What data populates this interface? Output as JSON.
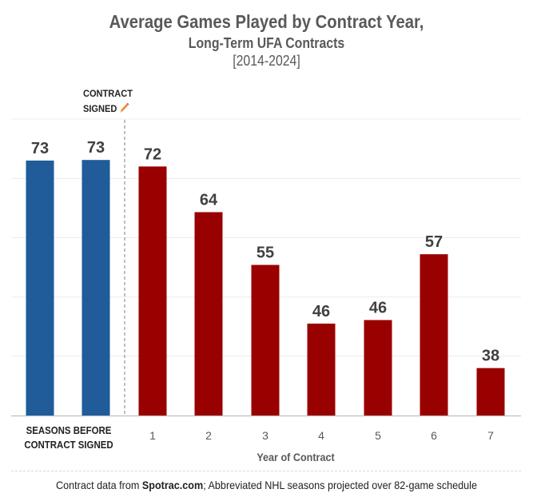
{
  "title": "Average Games Played by Contract Year,",
  "subtitle": "Long-Term UFA Contracts",
  "date_range": "[2014-2024]",
  "annotation": {
    "line1": "CONTRACT",
    "line2": "SIGNED",
    "icon": "pencil-icon"
  },
  "footer": {
    "prefix": "Contract data from ",
    "source": "Spotrac.com",
    "suffix": "; Abbreviated NHL seasons projected over 82-game schedule"
  },
  "colors": {
    "before": "#1f5c99",
    "after": "#990000",
    "label": "#404040",
    "grid": "#ececec"
  },
  "chart_data": {
    "type": "bar",
    "title": "Average Games Played by Contract Year, Long-Term UFA Contracts [2014-2024]",
    "xlabel": "Year of Contract",
    "ylabel": "",
    "ylim": [
      30,
      80
    ],
    "grid": true,
    "gridlines": [
      40,
      50,
      60,
      70,
      80
    ],
    "group_label": {
      "line1": "SEASONS BEFORE",
      "line2": "CONTRACT SIGNED"
    },
    "categories": [
      "Before -2",
      "Before -1",
      "1",
      "2",
      "3",
      "4",
      "5",
      "6",
      "7"
    ],
    "tick_labels": [
      "",
      "",
      "1",
      "2",
      "3",
      "4",
      "5",
      "6",
      "7"
    ],
    "values": [
      73.0,
      73.1,
      72.0,
      64.3,
      55.4,
      45.5,
      46.1,
      57.2,
      38.0
    ],
    "data_labels": [
      "73",
      "73",
      "72",
      "64",
      "55",
      "46",
      "46",
      "57",
      "38"
    ],
    "groups": [
      "before",
      "before",
      "after",
      "after",
      "after",
      "after",
      "after",
      "after",
      "after"
    ]
  }
}
